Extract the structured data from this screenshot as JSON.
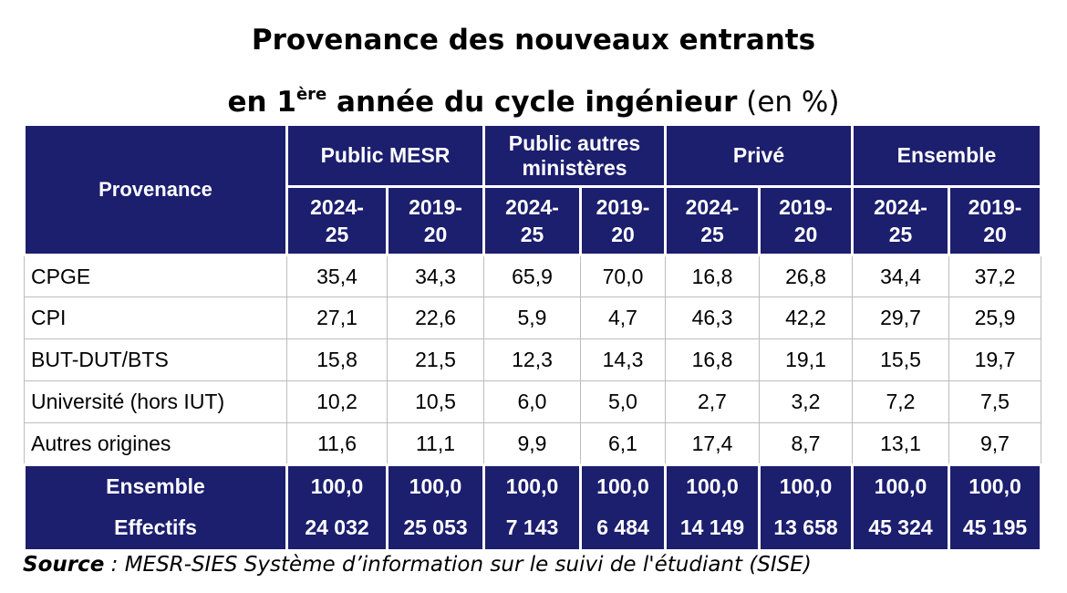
{
  "title": {
    "line1": "Provenance des nouveaux entrants",
    "line2_pre": "en 1",
    "line2_sup": "ère",
    "line2_post": " année du cycle ingénieur",
    "line2_unit": " (en %)"
  },
  "table": {
    "row_header": "Provenance",
    "groups": [
      "Public MESR",
      "Public autres ministères",
      "Privé",
      "Ensemble"
    ],
    "years": [
      {
        "top": "2024-",
        "bottom": "25"
      },
      {
        "top": "2019-",
        "bottom": "20"
      }
    ],
    "rows": [
      {
        "label": "CPGE",
        "values": [
          "35,4",
          "34,3",
          "65,9",
          "70,0",
          "16,8",
          "26,8",
          "34,4",
          "37,2"
        ]
      },
      {
        "label": "CPI",
        "values": [
          "27,1",
          "22,6",
          "5,9",
          "4,7",
          "46,3",
          "42,2",
          "29,7",
          "25,9"
        ]
      },
      {
        "label": "BUT-DUT/BTS",
        "values": [
          "15,8",
          "21,5",
          "12,3",
          "14,3",
          "16,8",
          "19,1",
          "15,5",
          "19,7"
        ]
      },
      {
        "label": "Université (hors IUT)",
        "values": [
          "10,2",
          "10,5",
          "6,0",
          "5,0",
          "2,7",
          "3,2",
          "7,2",
          "7,5"
        ]
      },
      {
        "label": "Autres origines",
        "values": [
          "11,6",
          "11,1",
          "9,9",
          "6,1",
          "17,4",
          "8,7",
          "13,1",
          "9,7"
        ]
      }
    ],
    "total": {
      "label": "Ensemble",
      "values": [
        "100,0",
        "100,0",
        "100,0",
        "100,0",
        "100,0",
        "100,0",
        "100,0",
        "100,0"
      ]
    },
    "effectifs": {
      "label": "Effectifs",
      "values": [
        "24 032",
        "25 053",
        "7 143",
        "6 484",
        "14 149",
        "13 658",
        "45 324",
        "45 195"
      ]
    }
  },
  "source": {
    "label": "Source",
    "text": " : MESR-SIES Système d’information sur le suivi de l'étudiant (SISE)"
  },
  "colors": {
    "header_bg": "#1c1e6e",
    "header_text": "#ffffff"
  }
}
